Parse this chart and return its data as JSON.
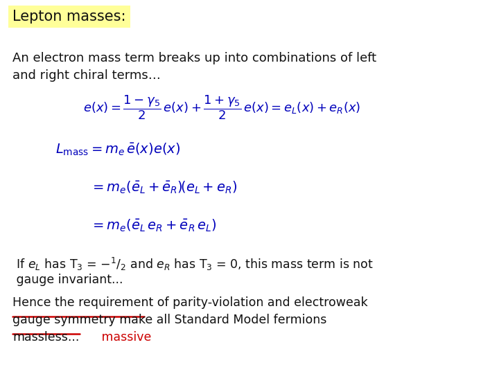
{
  "background_color": "#ffffff",
  "title_text": "Lepton masses:",
  "title_bg": "#ffff99",
  "title_fontsize": 15,
  "body_fontsize": 13,
  "eq_fontsize": 12,
  "blue": "#0000bb",
  "black": "#111111",
  "red": "#cc0000",
  "yellow_bg": "#ffff99",
  "line1": "An electron mass term breaks up into combinations of left",
  "line2": "and right chiral terms…",
  "para2_l1": " If $e_L$ has T$_3$ = $-^1/_2$ and $e_R$ has T$_3$ = 0, this mass term is not",
  "para2_l2": " gauge invariant...",
  "para3_l1": "Hence the requirement of parity-violation and electroweak",
  "para3_l2": "gauge symmetry make all Standard Model fermions",
  "para3_l3_plain": "massless...",
  "para3_l3_red": "   massive"
}
